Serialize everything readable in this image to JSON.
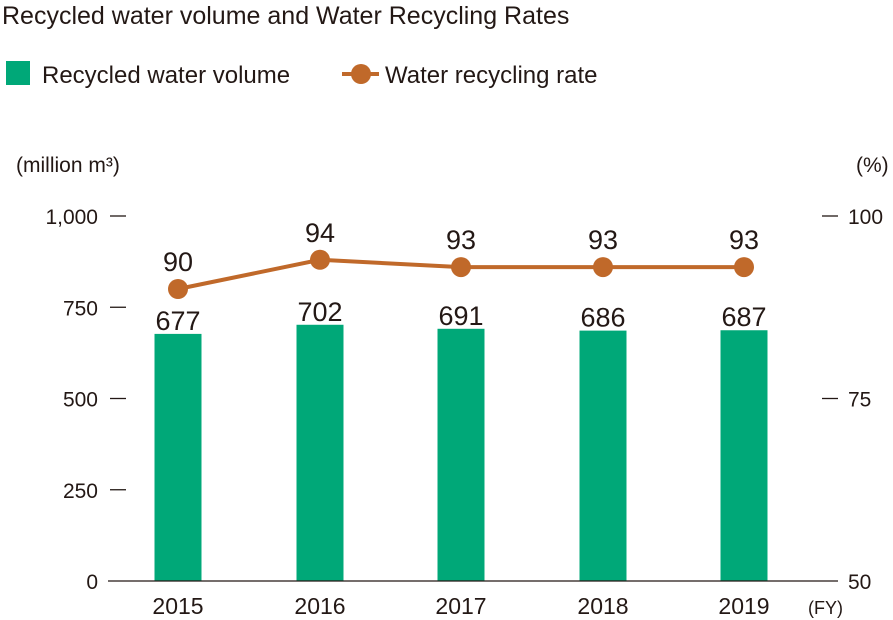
{
  "chart_data": {
    "type": "bar+line",
    "title": "Recycled water volume and Water Recycling Rates",
    "categories": [
      "2015",
      "2016",
      "2017",
      "2018",
      "2019"
    ],
    "xlabel": "(FY)",
    "ylabel_left": "(million m³)",
    "ylabel_right": "(%)",
    "ylim_left": [
      0,
      1000
    ],
    "yticks_left": [
      "0",
      "250",
      "500",
      "750",
      "1,000"
    ],
    "ylim_right": [
      50,
      100
    ],
    "yticks_right": [
      "50",
      "75",
      "100"
    ],
    "grid": false,
    "legend": "top-left",
    "series": [
      {
        "name": "Recycled water volume",
        "type": "bar",
        "axis": "left",
        "color": "#00a878",
        "values": [
          677,
          702,
          691,
          686,
          687
        ]
      },
      {
        "name": "Water recycling rate",
        "type": "line",
        "axis": "right",
        "color": "#c0692a",
        "values": [
          90,
          94,
          93,
          93,
          93
        ]
      }
    ]
  }
}
